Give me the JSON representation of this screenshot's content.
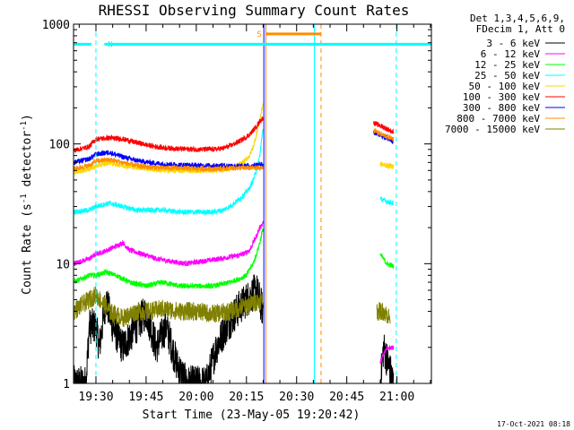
{
  "chart_data": {
    "type": "line",
    "title": "RHESSI Observing Summary Count Rates",
    "xlabel": "Start Time (23-May-05 19:20:42)",
    "ylabel_main": "Count Rate (s",
    "ylabel_sup1": "-1",
    "ylabel_mid": " detector",
    "ylabel_sup2": "-1",
    "ylabel_end": ")",
    "y_scale": "log",
    "ylim": [
      1,
      1000
    ],
    "xlim_minutes": [
      -6.7,
      100.3
    ],
    "x_ticks": [
      {
        "label": "19:30",
        "t": 0
      },
      {
        "label": "19:45",
        "t": 15
      },
      {
        "label": "20:00",
        "t": 30
      },
      {
        "label": "20:15",
        "t": 45
      },
      {
        "label": "20:30",
        "t": 60
      },
      {
        "label": "20:45",
        "t": 75
      },
      {
        "label": "21:00",
        "t": 90
      }
    ],
    "y_ticks": [
      {
        "label": "1",
        "value": 1
      },
      {
        "label": "10",
        "value": 10
      },
      {
        "label": "100",
        "value": 100
      },
      {
        "label": "1000",
        "value": 1000
      }
    ],
    "legend_header": [
      "Det 1,3,4,5,6,9,",
      "FDecim 1, Att 0"
    ],
    "legend_placement": "right, outside plot",
    "series": [
      {
        "name": "3 - 6 keV",
        "color": "#000000",
        "segments": [
          [
            [
              -6.7,
              1
            ],
            [
              -3,
              1
            ],
            [
              -2,
              3
            ],
            [
              0,
              3
            ],
            [
              1,
              2
            ],
            [
              3,
              5
            ],
            [
              5,
              3
            ],
            [
              8,
              2
            ],
            [
              12,
              3
            ],
            [
              15,
              4
            ],
            [
              18,
              2
            ],
            [
              21,
              3
            ],
            [
              24,
              1.5
            ],
            [
              27,
              1
            ],
            [
              33,
              1
            ],
            [
              36,
              2
            ],
            [
              39,
              3
            ],
            [
              42,
              4
            ],
            [
              45,
              5
            ],
            [
              48,
              6
            ],
            [
              50,
              4
            ]
          ],
          [
            [
              85,
              1
            ],
            [
              86,
              2
            ],
            [
              89,
              1
            ]
          ]
        ]
      },
      {
        "name": "6 - 12 keV",
        "color": "#ff00ff",
        "segments": [
          [
            [
              -6.7,
              10
            ],
            [
              -2,
              11
            ],
            [
              0,
              12
            ],
            [
              2,
              12.5
            ],
            [
              6,
              14
            ],
            [
              8,
              15
            ],
            [
              10,
              13
            ],
            [
              14,
              12
            ],
            [
              18,
              11
            ],
            [
              22,
              10.5
            ],
            [
              27,
              10
            ],
            [
              32,
              10.5
            ],
            [
              37,
              11
            ],
            [
              41,
              11.5
            ],
            [
              44,
              12
            ],
            [
              46,
              13
            ],
            [
              47,
              15
            ],
            [
              48,
              17
            ],
            [
              49,
              20
            ],
            [
              50,
              22
            ]
          ],
          [
            [
              85,
              1.5
            ],
            [
              87,
              2
            ],
            [
              89,
              2
            ]
          ]
        ]
      },
      {
        "name": "12 - 25 keV",
        "color": "#00ff00",
        "segments": [
          [
            [
              -6.7,
              7
            ],
            [
              -2,
              8
            ],
            [
              0,
              8
            ],
            [
              3,
              8.5
            ],
            [
              6,
              8
            ],
            [
              10,
              7
            ],
            [
              15,
              6.5
            ],
            [
              20,
              7
            ],
            [
              25,
              6.5
            ],
            [
              30,
              6.5
            ],
            [
              35,
              6.5
            ],
            [
              40,
              7
            ],
            [
              43,
              7.5
            ],
            [
              45,
              8
            ],
            [
              46,
              9
            ],
            [
              47,
              10
            ],
            [
              48,
              12
            ],
            [
              49,
              15
            ],
            [
              50,
              20
            ]
          ],
          [
            [
              85,
              12
            ],
            [
              87,
              10
            ],
            [
              89,
              9.5
            ]
          ]
        ]
      },
      {
        "name": "25 - 50 keV",
        "color": "#00ffff",
        "segments": [
          [
            [
              -6.7,
              27
            ],
            [
              -2,
              28
            ],
            [
              0,
              30
            ],
            [
              4,
              32
            ],
            [
              8,
              30
            ],
            [
              12,
              28
            ],
            [
              16,
              28
            ],
            [
              20,
              28
            ],
            [
              25,
              27
            ],
            [
              30,
              27
            ],
            [
              35,
              27
            ],
            [
              38,
              28
            ],
            [
              40,
              30
            ],
            [
              42,
              33
            ],
            [
              44,
              37
            ],
            [
              46,
              43
            ],
            [
              47,
              50
            ],
            [
              48,
              60
            ],
            [
              49,
              80
            ],
            [
              50,
              140
            ]
          ],
          [
            [
              85,
              35
            ],
            [
              87,
              33
            ],
            [
              89,
              32
            ]
          ]
        ]
      },
      {
        "name": "50 - 100 keV",
        "color": "#ffd700",
        "segments": [
          [
            [
              -6.7,
              58
            ],
            [
              -2,
              62
            ],
            [
              0,
              65
            ],
            [
              4,
              70
            ],
            [
              8,
              66
            ],
            [
              12,
              64
            ],
            [
              16,
              62
            ],
            [
              20,
              60
            ],
            [
              25,
              60
            ],
            [
              30,
              60
            ],
            [
              35,
              60
            ],
            [
              38,
              61
            ],
            [
              40,
              62
            ],
            [
              42,
              65
            ],
            [
              44,
              70
            ],
            [
              46,
              80
            ],
            [
              47,
              95
            ],
            [
              48,
              120
            ],
            [
              49,
              160
            ],
            [
              50,
              220
            ]
          ],
          [
            [
              85,
              68
            ],
            [
              87,
              66
            ],
            [
              89,
              65
            ]
          ]
        ]
      },
      {
        "name": "100 - 300 keV",
        "color": "#ff0000",
        "segments": [
          [
            [
              -6.7,
              88
            ],
            [
              -2,
              95
            ],
            [
              0,
              110
            ],
            [
              4,
              112
            ],
            [
              8,
              110
            ],
            [
              12,
              103
            ],
            [
              16,
              97
            ],
            [
              20,
              93
            ],
            [
              25,
              91
            ],
            [
              30,
              90
            ],
            [
              35,
              90
            ],
            [
              38,
              92
            ],
            [
              40,
              96
            ],
            [
              42,
              102
            ],
            [
              44,
              110
            ],
            [
              46,
              120
            ],
            [
              47,
              130
            ],
            [
              48,
              140
            ],
            [
              49,
              155
            ],
            [
              50,
              165
            ]
          ],
          [
            [
              83,
              150
            ],
            [
              86,
              138
            ],
            [
              89,
              125
            ]
          ]
        ]
      },
      {
        "name": "300 - 800 keV",
        "color": "#0000ff",
        "segments": [
          [
            [
              -6.7,
              70
            ],
            [
              -2,
              75
            ],
            [
              0,
              82
            ],
            [
              4,
              85
            ],
            [
              8,
              78
            ],
            [
              12,
              73
            ],
            [
              16,
              70
            ],
            [
              20,
              68
            ],
            [
              25,
              67
            ],
            [
              30,
              66
            ],
            [
              35,
              66
            ],
            [
              40,
              66
            ],
            [
              44,
              65
            ],
            [
              47,
              66
            ],
            [
              50,
              68
            ]
          ],
          [
            [
              83,
              125
            ],
            [
              86,
              115
            ],
            [
              89,
              105
            ]
          ]
        ]
      },
      {
        "name": "800 - 7000 keV",
        "color": "#ff8c00",
        "segments": [
          [
            [
              -6.7,
              62
            ],
            [
              -2,
              66
            ],
            [
              0,
              72
            ],
            [
              4,
              74
            ],
            [
              8,
              70
            ],
            [
              12,
              66
            ],
            [
              16,
              64
            ],
            [
              20,
              63
            ],
            [
              25,
              63
            ],
            [
              30,
              62
            ],
            [
              35,
              62
            ],
            [
              40,
              63
            ],
            [
              44,
              63
            ],
            [
              47,
              63
            ],
            [
              50,
              63
            ]
          ],
          [
            [
              83,
              130
            ],
            [
              86,
              118
            ],
            [
              89,
              110
            ]
          ]
        ]
      },
      {
        "name": "7000 - 15000 keV",
        "color": "#808000",
        "segments": [
          [
            [
              -6.7,
              4
            ],
            [
              -2,
              5
            ],
            [
              0,
              5.5
            ],
            [
              4,
              4
            ],
            [
              8,
              3.5
            ],
            [
              12,
              4
            ],
            [
              16,
              4
            ],
            [
              20,
              4.2
            ],
            [
              25,
              4
            ],
            [
              30,
              4
            ],
            [
              35,
              3.8
            ],
            [
              40,
              4
            ],
            [
              45,
              4.5
            ],
            [
              50,
              5
            ]
          ],
          [
            [
              84,
              4
            ],
            [
              86,
              4
            ],
            [
              88,
              3.5
            ]
          ]
        ]
      }
    ],
    "markers": [
      {
        "label": "N",
        "color": "#00ffff",
        "bars": [
          [
            -6.7,
            -1.3
          ],
          [
            2.5,
            100.3
          ]
        ],
        "bar_value": 680
      },
      {
        "label": "S",
        "color": "#ff8c00",
        "bars": [
          [
            50.8,
            67.3
          ]
        ],
        "bar_value": 830
      }
    ],
    "vlines": [
      {
        "t": 0,
        "color": "#00ffff",
        "dashed": true
      },
      {
        "t": 50.2,
        "color": "#0000ff",
        "dashed": false
      },
      {
        "t": 50.8,
        "color": "#ff8c00",
        "dashed": false
      },
      {
        "t": 65.3,
        "color": "#00ffff",
        "dashed": false
      },
      {
        "t": 67.3,
        "color": "#ff8c00",
        "dashed": true
      },
      {
        "t": 89.8,
        "color": "#00ffff",
        "dashed": true
      }
    ]
  },
  "footer_stamp": "17-Oct-2021 08:18"
}
